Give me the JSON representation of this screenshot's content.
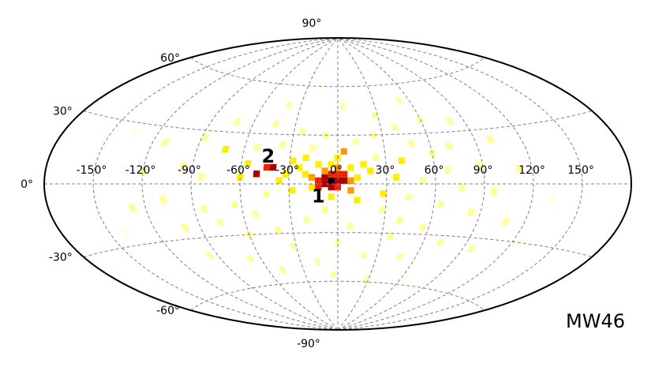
{
  "chart_data": {
    "type": "heatmap",
    "projection": "aitoff",
    "panel_label": "MW46",
    "xlim": [
      -180,
      180
    ],
    "ylim": [
      -90,
      90
    ],
    "grid": true,
    "lon_tick_labels": [
      {
        "lon": -150,
        "text": "-150°"
      },
      {
        "lon": -120,
        "text": "-120°"
      },
      {
        "lon": -90,
        "text": "-90°"
      },
      {
        "lon": -60,
        "text": "-60°"
      },
      {
        "lon": -30,
        "text": "-30°"
      },
      {
        "lon": 0,
        "text": "0°"
      },
      {
        "lon": 30,
        "text": "30°"
      },
      {
        "lon": 60,
        "text": "60°"
      },
      {
        "lon": 90,
        "text": "90°"
      },
      {
        "lon": 120,
        "text": "120°"
      },
      {
        "lon": 150,
        "text": "150°"
      }
    ],
    "lat_tick_labels": [
      {
        "lat": 90,
        "text": "90°"
      },
      {
        "lat": 60,
        "text": "60°"
      },
      {
        "lat": 30,
        "text": "30°"
      },
      {
        "lat": 0,
        "text": "0°"
      },
      {
        "lat": -30,
        "text": "-30°"
      },
      {
        "lat": -60,
        "text": "-60°"
      },
      {
        "lat": -90,
        "text": "-90°"
      }
    ],
    "annotations": [
      {
        "text": "1",
        "lon": -12,
        "lat": -7
      },
      {
        "text": "2",
        "lon": -44,
        "lat": 17
      }
    ],
    "color_scale": [
      "#ffffe6",
      "#ffff99",
      "#ffee00",
      "#ff9900",
      "#ee2200",
      "#aa0000",
      "#000000"
    ],
    "cells": [
      {
        "lon": -4,
        "lat": 2,
        "v": 1.0
      },
      {
        "lon": -8,
        "lat": 4,
        "v": 0.85
      },
      {
        "lon": 0,
        "lat": 2,
        "v": 0.85
      },
      {
        "lon": -8,
        "lat": 0,
        "v": 0.8
      },
      {
        "lon": 4,
        "lat": 2,
        "v": 0.8
      },
      {
        "lon": -4,
        "lat": -2,
        "v": 0.8
      },
      {
        "lon": -40,
        "lat": 10,
        "v": 0.8
      },
      {
        "lon": -50,
        "lat": 6,
        "v": 0.75
      },
      {
        "lon": -12,
        "lat": 2,
        "v": 0.65
      },
      {
        "lon": -12,
        "lat": 0,
        "v": 0.65
      },
      {
        "lon": 0,
        "lat": 6,
        "v": 0.65
      },
      {
        "lon": -4,
        "lat": 6,
        "v": 0.65
      },
      {
        "lon": 0,
        "lat": -2,
        "v": 0.6
      },
      {
        "lon": -12,
        "lat": -2,
        "v": 0.6
      },
      {
        "lon": 4,
        "lat": 6,
        "v": 0.6
      },
      {
        "lon": -44,
        "lat": 10,
        "v": 0.6
      },
      {
        "lon": 8,
        "lat": 2,
        "v": 0.55
      },
      {
        "lon": -8,
        "lat": 8,
        "v": 0.55
      },
      {
        "lon": 0,
        "lat": 10,
        "v": 0.5
      },
      {
        "lon": 4,
        "lat": 20,
        "v": 0.45
      },
      {
        "lon": -16,
        "lat": 4,
        "v": 0.45
      },
      {
        "lon": 8,
        "lat": -4,
        "v": 0.45
      },
      {
        "lon": -16,
        "lat": -2,
        "v": 0.4
      },
      {
        "lon": 12,
        "lat": 4,
        "v": 0.4
      },
      {
        "lon": -20,
        "lat": 6,
        "v": 0.35
      },
      {
        "lon": -4,
        "lat": 12,
        "v": 0.35
      },
      {
        "lon": 8,
        "lat": 10,
        "v": 0.35
      },
      {
        "lon": -12,
        "lat": 12,
        "v": 0.35
      },
      {
        "lon": -24,
        "lat": 10,
        "v": 0.33
      },
      {
        "lon": -32,
        "lat": 6,
        "v": 0.33
      },
      {
        "lon": -28,
        "lat": 14,
        "v": 0.3
      },
      {
        "lon": -20,
        "lat": 16,
        "v": 0.3
      },
      {
        "lon": 0,
        "lat": 16,
        "v": 0.3
      },
      {
        "lon": 12,
        "lat": -10,
        "v": 0.3
      },
      {
        "lon": 20,
        "lat": 8,
        "v": 0.3
      },
      {
        "lon": -60,
        "lat": 4,
        "v": 0.3
      },
      {
        "lon": -36,
        "lat": 2,
        "v": 0.3
      },
      {
        "lon": -4,
        "lat": -8,
        "v": 0.3
      },
      {
        "lon": 16,
        "lat": 12,
        "v": 0.28
      },
      {
        "lon": -56,
        "lat": 12,
        "v": 0.28
      },
      {
        "lon": -28,
        "lat": -4,
        "v": 0.28
      },
      {
        "lon": -72,
        "lat": 20,
        "v": 0.28
      },
      {
        "lon": 28,
        "lat": -6,
        "v": 0.26
      },
      {
        "lon": 36,
        "lat": 4,
        "v": 0.26
      },
      {
        "lon": 40,
        "lat": 14,
        "v": 0.26
      },
      {
        "lon": 24,
        "lat": 16,
        "v": 0.24
      },
      {
        "lon": -16,
        "lat": 22,
        "v": 0.24
      },
      {
        "lon": -44,
        "lat": -6,
        "v": 0.24
      },
      {
        "lon": -64,
        "lat": -12,
        "v": 0.24
      },
      {
        "lon": 44,
        "lat": -8,
        "v": 0.24
      },
      {
        "lon": 52,
        "lat": 2,
        "v": 0.24
      },
      {
        "lon": 28,
        "lat": -16,
        "v": 0.24
      },
      {
        "lon": -8,
        "lat": -16,
        "v": 0.24
      },
      {
        "lon": 60,
        "lat": 18,
        "v": 0.22
      },
      {
        "lon": -84,
        "lat": 4,
        "v": 0.22
      },
      {
        "lon": -84,
        "lat": -14,
        "v": 0.22
      },
      {
        "lon": -40,
        "lat": -28,
        "v": 0.22
      },
      {
        "lon": 12,
        "lat": 26,
        "v": 0.22
      },
      {
        "lon": -36,
        "lat": 24,
        "v": 0.2
      },
      {
        "lon": 48,
        "lat": 24,
        "v": 0.2
      },
      {
        "lon": 64,
        "lat": -12,
        "v": 0.2
      },
      {
        "lon": 40,
        "lat": -22,
        "v": 0.2
      },
      {
        "lon": 8,
        "lat": -26,
        "v": 0.2
      },
      {
        "lon": -20,
        "lat": -22,
        "v": 0.2
      },
      {
        "lon": -52,
        "lat": -18,
        "v": 0.2
      },
      {
        "lon": 24,
        "lat": 30,
        "v": 0.18
      },
      {
        "lon": -8,
        "lat": 30,
        "v": 0.18
      },
      {
        "lon": 68,
        "lat": 8,
        "v": 0.18
      },
      {
        "lon": -96,
        "lat": 10,
        "v": 0.18
      },
      {
        "lon": 76,
        "lat": -2,
        "v": 0.18
      },
      {
        "lon": -60,
        "lat": -30,
        "v": 0.18
      },
      {
        "lon": 56,
        "lat": -26,
        "v": 0.18
      },
      {
        "lon": 36,
        "lat": -32,
        "v": 0.18
      },
      {
        "lon": 72,
        "lat": 22,
        "v": 0.16
      },
      {
        "lon": -24,
        "lat": 32,
        "v": 0.16
      },
      {
        "lon": 40,
        "lat": 34,
        "v": 0.16
      },
      {
        "lon": -52,
        "lat": 22,
        "v": 0.16
      },
      {
        "lon": -76,
        "lat": -22,
        "v": 0.16
      },
      {
        "lon": -108,
        "lat": -8,
        "v": 0.16
      },
      {
        "lon": 88,
        "lat": 10,
        "v": 0.16
      },
      {
        "lon": 84,
        "lat": -16,
        "v": 0.16
      },
      {
        "lon": 0,
        "lat": -36,
        "v": 0.16
      },
      {
        "lon": -32,
        "lat": -38,
        "v": 0.15
      },
      {
        "lon": 60,
        "lat": 38,
        "v": 0.14
      },
      {
        "lon": 28,
        "lat": 42,
        "v": 0.14
      },
      {
        "lon": -44,
        "lat": 36,
        "v": 0.14
      },
      {
        "lon": -88,
        "lat": 26,
        "v": 0.14
      },
      {
        "lon": 96,
        "lat": -4,
        "v": 0.14
      },
      {
        "lon": -100,
        "lat": -24,
        "v": 0.14
      },
      {
        "lon": 20,
        "lat": -44,
        "v": 0.14
      },
      {
        "lon": 72,
        "lat": -34,
        "v": 0.14
      },
      {
        "lon": -16,
        "lat": -48,
        "v": 0.13
      },
      {
        "lon": -68,
        "lat": -44,
        "v": 0.13
      },
      {
        "lon": 100,
        "lat": 24,
        "v": 0.12
      },
      {
        "lon": 80,
        "lat": 36,
        "v": 0.12
      },
      {
        "lon": -72,
        "lat": 36,
        "v": 0.12
      },
      {
        "lon": 4,
        "lat": 48,
        "v": 0.12
      },
      {
        "lon": 48,
        "lat": -44,
        "v": 0.12
      },
      {
        "lon": -120,
        "lat": 6,
        "v": 0.12
      },
      {
        "lon": 108,
        "lat": -20,
        "v": 0.12
      },
      {
        "lon": -112,
        "lat": 22,
        "v": 0.1
      },
      {
        "lon": 112,
        "lat": 8,
        "v": 0.1
      },
      {
        "lon": -40,
        "lat": 48,
        "v": 0.1
      },
      {
        "lon": 52,
        "lat": 50,
        "v": 0.1
      },
      {
        "lon": -128,
        "lat": -12,
        "v": 0.1
      },
      {
        "lon": 96,
        "lat": -36,
        "v": 0.1
      },
      {
        "lon": -4,
        "lat": -56,
        "v": 0.1
      },
      {
        "lon": -48,
        "lat": -52,
        "v": 0.1
      },
      {
        "lon": 28,
        "lat": -58,
        "v": 0.1
      },
      {
        "lon": -96,
        "lat": -40,
        "v": 0.1
      },
      {
        "lon": 120,
        "lat": 30,
        "v": 0.08
      },
      {
        "lon": -136,
        "lat": 26,
        "v": 0.08
      },
      {
        "lon": 132,
        "lat": -8,
        "v": 0.08
      },
      {
        "lon": -16,
        "lat": 58,
        "v": 0.08
      },
      {
        "lon": 72,
        "lat": 52,
        "v": 0.08
      },
      {
        "lon": -140,
        "lat": -24,
        "v": 0.08
      },
      {
        "lon": 124,
        "lat": -30,
        "v": 0.08
      },
      {
        "lon": 64,
        "lat": -56,
        "v": 0.08
      },
      {
        "lon": -28,
        "lat": -64,
        "v": 0.08
      }
    ]
  }
}
